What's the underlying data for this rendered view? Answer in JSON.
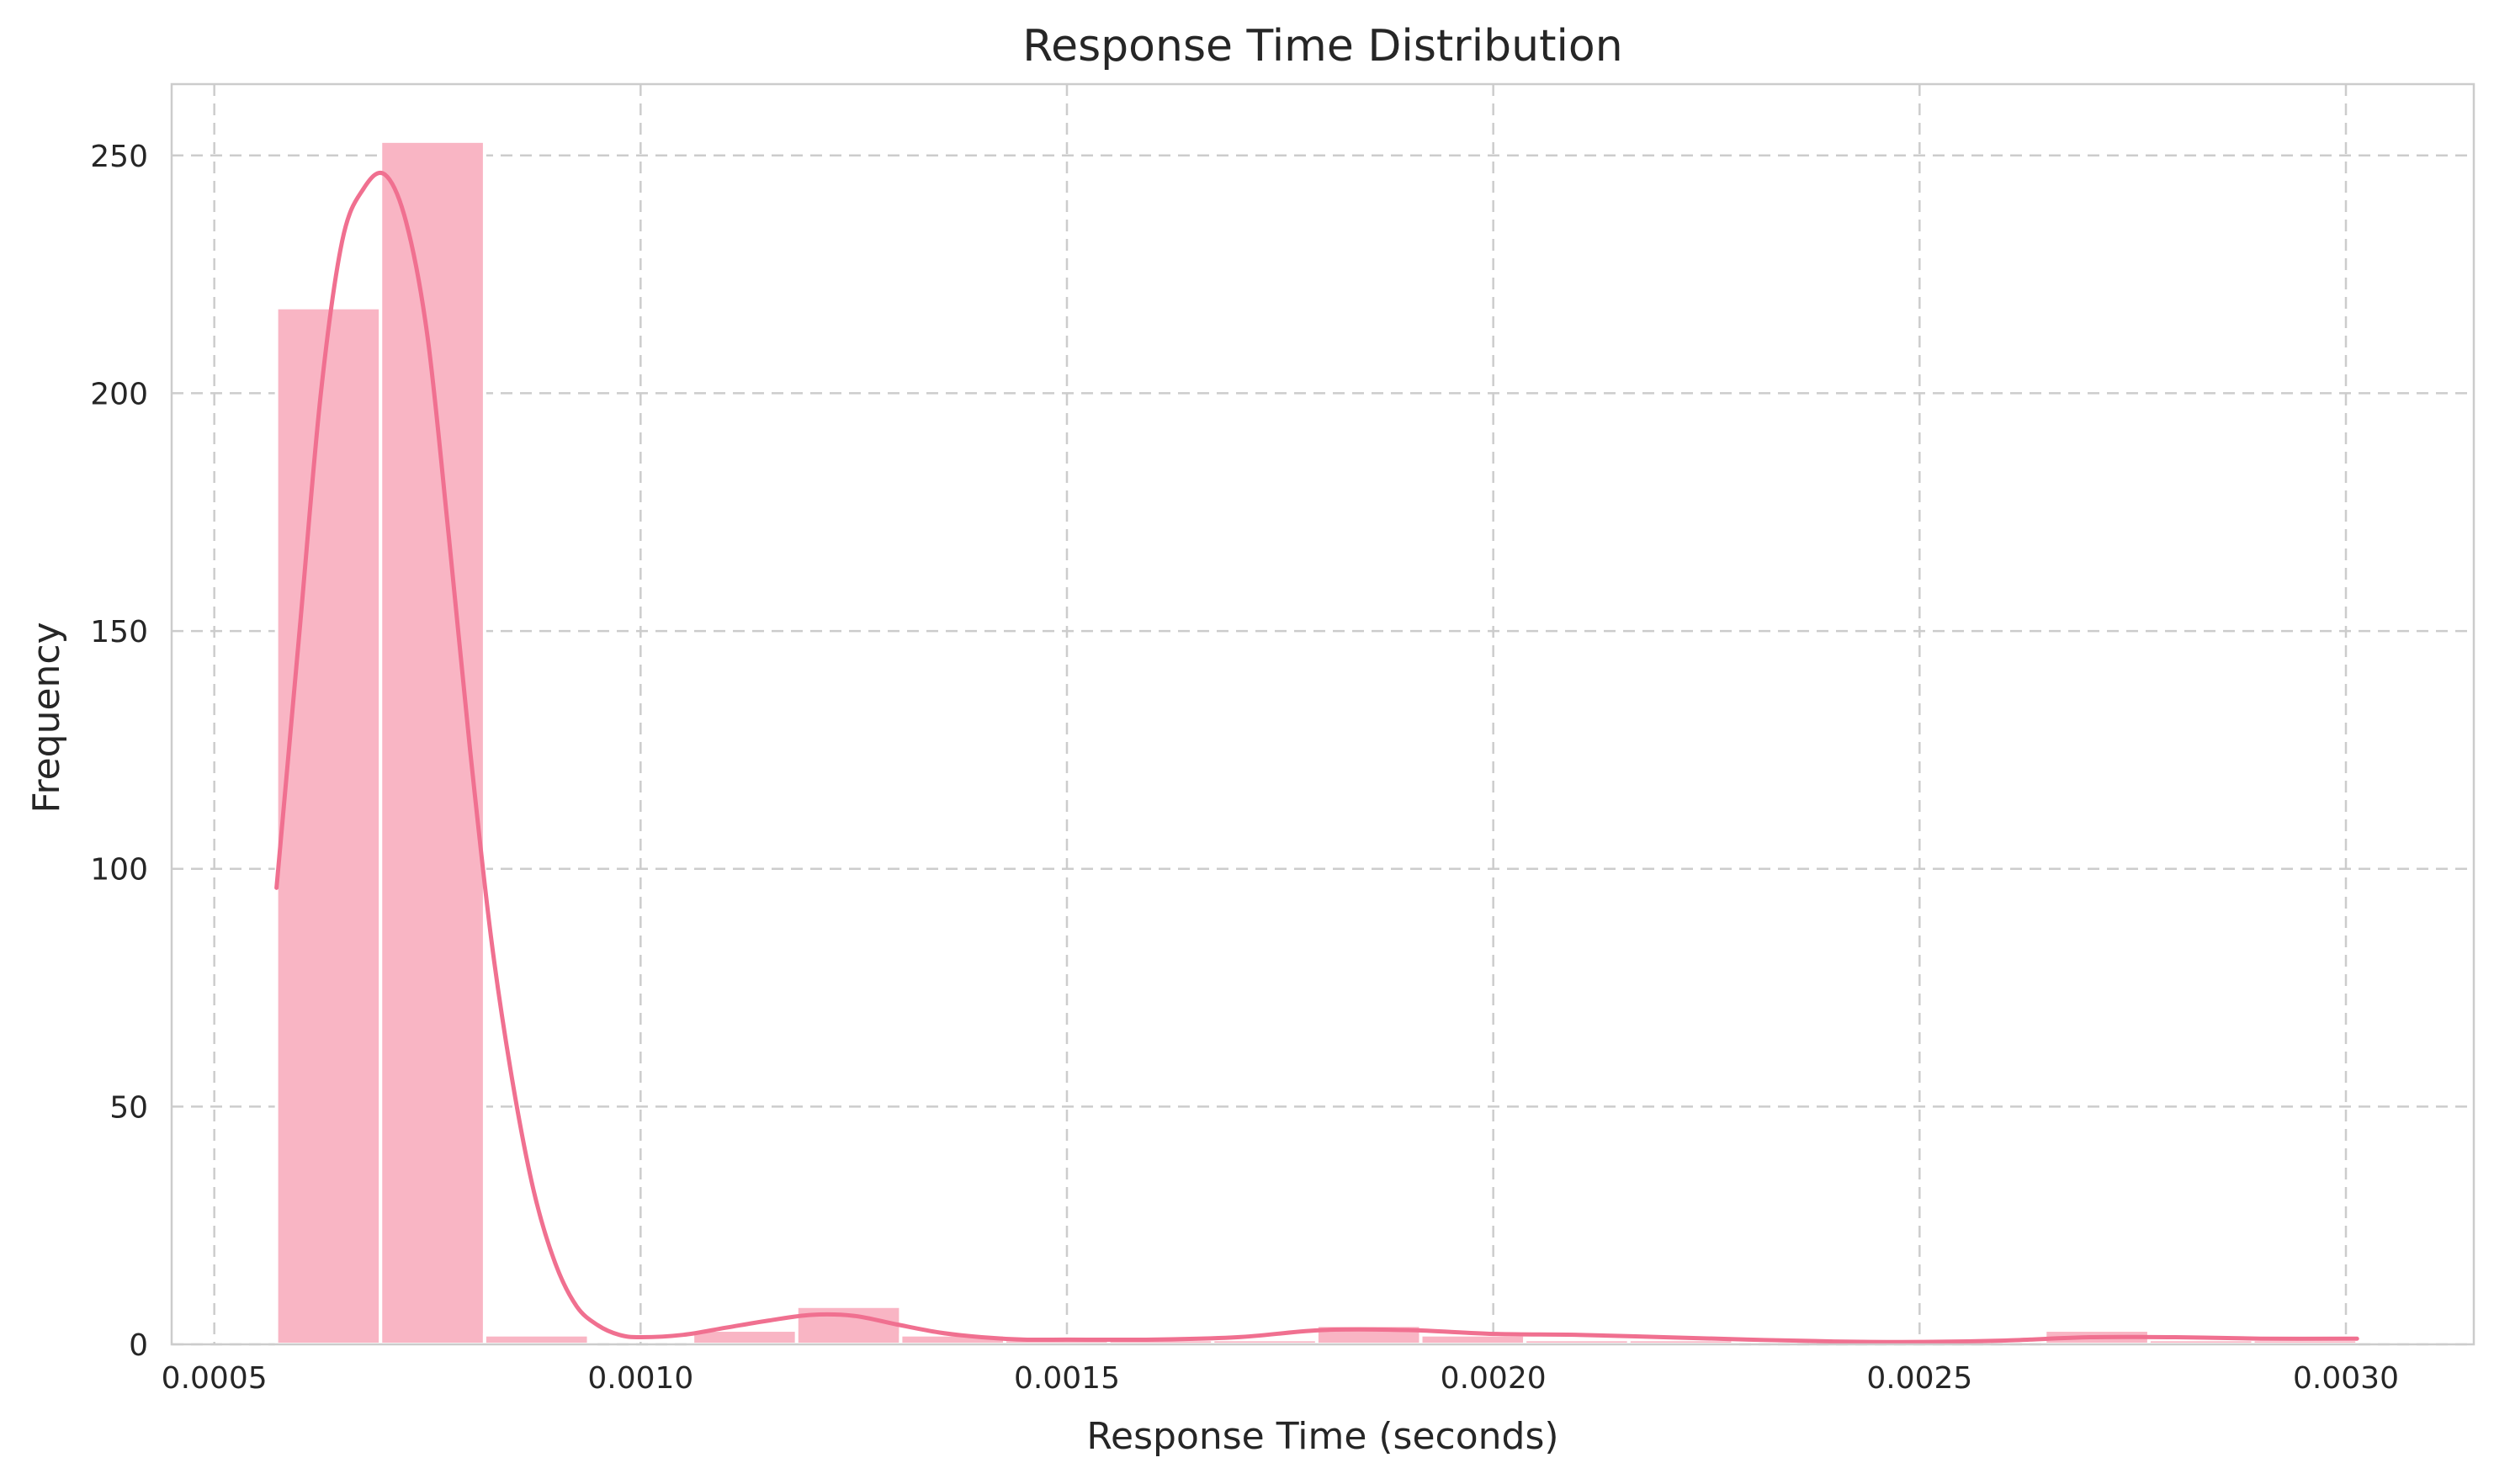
{
  "chart_data": {
    "type": "histogram",
    "title": "Response Time Distribution",
    "xlabel": "Response Time (seconds)",
    "ylabel": "Frequency",
    "xlim": [
      0.00045,
      0.00315
    ],
    "ylim": [
      0,
      265
    ],
    "x_ticks": [
      0.0005,
      0.001,
      0.0015,
      0.002,
      0.0025,
      0.003
    ],
    "x_tick_labels": [
      "0.0005",
      "0.0010",
      "0.0015",
      "0.0020",
      "0.0025",
      "0.0030"
    ],
    "y_ticks": [
      0,
      50,
      100,
      150,
      200,
      250
    ],
    "y_tick_labels": [
      "0",
      "50",
      "100",
      "150",
      "200",
      "250"
    ],
    "grid": true,
    "bar_color": "#f9b5c4",
    "kde_color": "#f07090",
    "bins": [
      {
        "x0": 0.000573,
        "x1": 0.000695,
        "count": 218
      },
      {
        "x0": 0.000695,
        "x1": 0.000817,
        "count": 253
      },
      {
        "x0": 0.000817,
        "x1": 0.000939,
        "count": 2
      },
      {
        "x0": 0.000939,
        "x1": 0.001061,
        "count": 0
      },
      {
        "x0": 0.001061,
        "x1": 0.001183,
        "count": 3
      },
      {
        "x0": 0.001183,
        "x1": 0.001305,
        "count": 8
      },
      {
        "x0": 0.001305,
        "x1": 0.001427,
        "count": 2
      },
      {
        "x0": 0.001427,
        "x1": 0.001549,
        "count": 1
      },
      {
        "x0": 0.001549,
        "x1": 0.001671,
        "count": 1
      },
      {
        "x0": 0.001671,
        "x1": 0.001793,
        "count": 1
      },
      {
        "x0": 0.001793,
        "x1": 0.001915,
        "count": 4
      },
      {
        "x0": 0.001915,
        "x1": 0.002037,
        "count": 2
      },
      {
        "x0": 0.002037,
        "x1": 0.002159,
        "count": 1
      },
      {
        "x0": 0.002159,
        "x1": 0.002281,
        "count": 1
      },
      {
        "x0": 0.002281,
        "x1": 0.002403,
        "count": 0
      },
      {
        "x0": 0.002403,
        "x1": 0.002525,
        "count": 0
      },
      {
        "x0": 0.002525,
        "x1": 0.002647,
        "count": 0
      },
      {
        "x0": 0.002647,
        "x1": 0.002769,
        "count": 3
      },
      {
        "x0": 0.002769,
        "x1": 0.002891,
        "count": 1
      },
      {
        "x0": 0.002891,
        "x1": 0.003013,
        "count": 1
      }
    ],
    "kde": [
      [
        0.000573,
        96
      ],
      [
        0.0006,
        150
      ],
      [
        0.000625,
        200
      ],
      [
        0.00065,
        232
      ],
      [
        0.000675,
        243
      ],
      [
        0.0007,
        246
      ],
      [
        0.000725,
        236
      ],
      [
        0.00075,
        212
      ],
      [
        0.000775,
        170
      ],
      [
        0.0008,
        125
      ],
      [
        0.000825,
        85
      ],
      [
        0.00085,
        55
      ],
      [
        0.000875,
        32
      ],
      [
        0.0009,
        17
      ],
      [
        0.000925,
        8
      ],
      [
        0.00095,
        4
      ],
      [
        0.000975,
        2
      ],
      [
        0.001,
        1.5
      ],
      [
        0.00105,
        2
      ],
      [
        0.0011,
        3.5
      ],
      [
        0.00115,
        5
      ],
      [
        0.0012,
        6.2
      ],
      [
        0.00125,
        6
      ],
      [
        0.0013,
        4.2
      ],
      [
        0.00135,
        2.5
      ],
      [
        0.0014,
        1.5
      ],
      [
        0.00145,
        1
      ],
      [
        0.0015,
        1
      ],
      [
        0.0016,
        1
      ],
      [
        0.0017,
        1.5
      ],
      [
        0.0018,
        3
      ],
      [
        0.0019,
        3
      ],
      [
        0.002,
        2.2
      ],
      [
        0.0021,
        2
      ],
      [
        0.0022,
        1.5
      ],
      [
        0.0023,
        1
      ],
      [
        0.0024,
        0.6
      ],
      [
        0.0025,
        0.5
      ],
      [
        0.0026,
        0.8
      ],
      [
        0.0027,
        1.5
      ],
      [
        0.0028,
        1.5
      ],
      [
        0.0029,
        1.2
      ],
      [
        0.003013,
        1.2
      ]
    ]
  }
}
